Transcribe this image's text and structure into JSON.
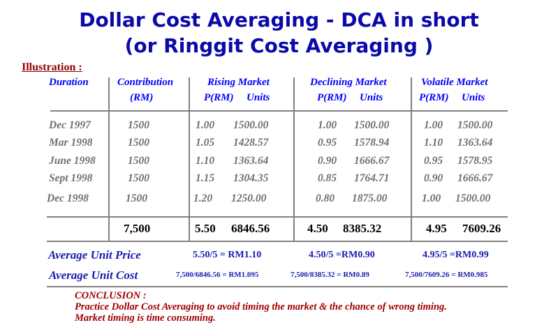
{
  "title": {
    "line1": "Dollar Cost Averaging - DCA in short",
    "line2": "(or Ringgit Cost Averaging )"
  },
  "illustration_label": "Illustration :",
  "headers": {
    "duration": "Duration",
    "contribution": "Contribution",
    "contribution_unit": "(RM)",
    "rising": "Rising Market",
    "declining": "Declining Market",
    "volatile": "Volatile Market",
    "price": "P(RM)",
    "units": "Units"
  },
  "rows": [
    {
      "duration": "Dec 1997",
      "contribution": "1500",
      "rising_p": "1.00",
      "rising_u": "1500.00",
      "declining_p": "1.00",
      "declining_u": "1500.00",
      "volatile_p": "1.00",
      "volatile_u": "1500.00"
    },
    {
      "duration": "Mar 1998",
      "contribution": "1500",
      "rising_p": "1.05",
      "rising_u": "1428.57",
      "declining_p": "0.95",
      "declining_u": "1578.94",
      "volatile_p": "1.10",
      "volatile_u": "1363.64"
    },
    {
      "duration": "June 1998",
      "contribution": "1500",
      "rising_p": "1.10",
      "rising_u": "1363.64",
      "declining_p": "0.90",
      "declining_u": "1666.67",
      "volatile_p": "0.95",
      "volatile_u": "1578.95"
    },
    {
      "duration": "Sept 1998",
      "contribution": "1500",
      "rising_p": "1.15",
      "rising_u": "1304.35",
      "declining_p": "0.85",
      "declining_u": "1764.71",
      "volatile_p": "0.90",
      "volatile_u": "1666.67"
    },
    {
      "duration": "Dec 1998",
      "contribution": "1500",
      "rising_p": "1.20",
      "rising_u": "1250.00",
      "declining_p": "0.80",
      "declining_u": "1875.00",
      "volatile_p": "1.00",
      "volatile_u": "1500.00"
    }
  ],
  "totals": {
    "contribution": "7,500",
    "rising_p": "5.50",
    "rising_u": "6846.56",
    "declining_p": "4.50",
    "declining_u": "8385.32",
    "volatile_p": "4.95",
    "volatile_u": "7609.26"
  },
  "average_price": {
    "label": "Average Unit Price",
    "rising": "5.50/5 = RM1.10",
    "declining": "4.50/5 =RM0.90",
    "volatile": "4.95/5 =RM0.99"
  },
  "average_cost": {
    "label": "Average Unit Cost",
    "rising": "7,500/6846.56 = RM1.095",
    "declining": "7,500/8385.32 = RM0.89",
    "volatile": "7,500/7609.26 = RM0.985"
  },
  "conclusion": {
    "heading": "CONCLUSION :",
    "line1": "Practice Dollar Cost Averaging to avoid timing the market & the chance of wrong timing.",
    "line2": "Market timing is time consuming."
  }
}
